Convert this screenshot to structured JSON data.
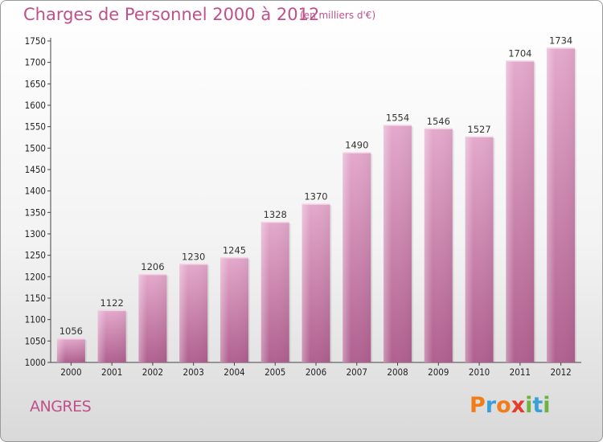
{
  "chart_data": {
    "type": "bar",
    "title": "Charges de Personnel 2000 à 2012",
    "subtitle": "(en milliers d'€)",
    "categories": [
      "2000",
      "2001",
      "2002",
      "2003",
      "2004",
      "2005",
      "2006",
      "2007",
      "2008",
      "2009",
      "2010",
      "2011",
      "2012"
    ],
    "values": [
      1056,
      1122,
      1206,
      1230,
      1245,
      1328,
      1370,
      1490,
      1554,
      1546,
      1527,
      1704,
      1734
    ],
    "ylim": [
      1000,
      1750
    ],
    "yticks": [
      1000,
      1050,
      1100,
      1150,
      1200,
      1250,
      1300,
      1350,
      1400,
      1450,
      1500,
      1550,
      1600,
      1650,
      1700,
      1750
    ],
    "grid": false,
    "bar_color": "#c0508a"
  },
  "footer": {
    "city": "ANGRES"
  },
  "logo": {
    "letters": [
      {
        "ch": "P",
        "color": "#f07d1a"
      },
      {
        "ch": "r",
        "color": "#3aa0d8"
      },
      {
        "ch": "o",
        "color": "#f07d1a"
      },
      {
        "ch": "x",
        "color": "#e83a2a"
      },
      {
        "ch": "i",
        "color": "#6cb33f"
      },
      {
        "ch": "t",
        "color": "#3aa0d8"
      },
      {
        "ch": "i",
        "color": "#6cb33f"
      }
    ]
  }
}
